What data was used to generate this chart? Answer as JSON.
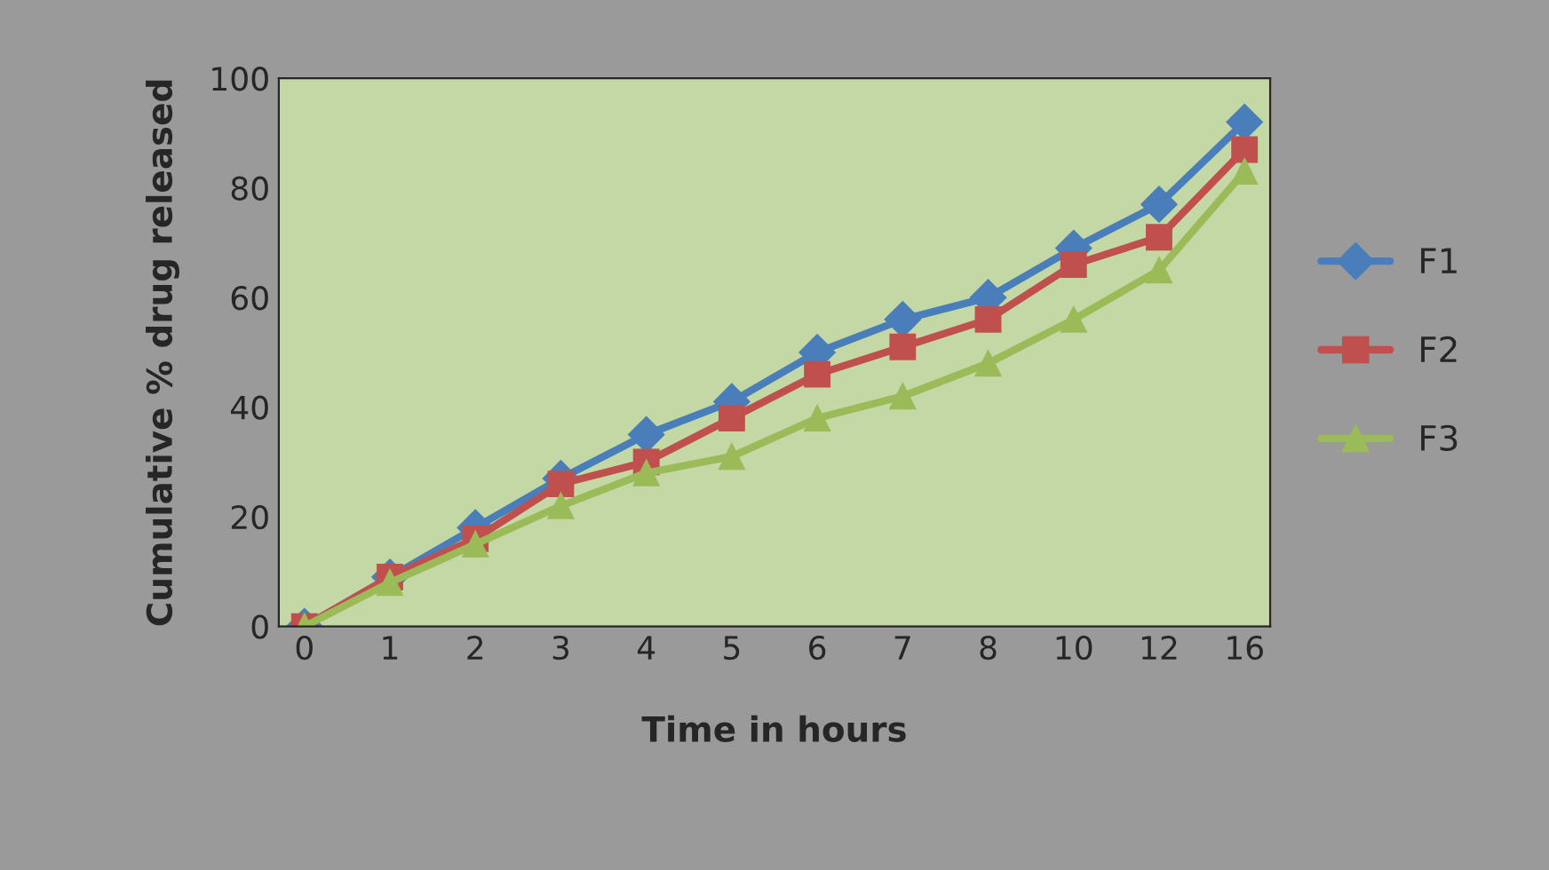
{
  "chart_data": {
    "type": "line",
    "xlabel": "Time in hours",
    "ylabel": "Cumulative % drug released",
    "categories": [
      "0",
      "1",
      "2",
      "3",
      "4",
      "5",
      "6",
      "7",
      "8",
      "10",
      "12",
      "16"
    ],
    "ylim": [
      0,
      100
    ],
    "yticks": [
      0,
      20,
      40,
      60,
      80,
      100
    ],
    "grid": false,
    "legend": "right",
    "series": [
      {
        "name": "F1",
        "color": "#4a7ebb",
        "marker": "diamond",
        "values": [
          0,
          9,
          18,
          27,
          35,
          41,
          50,
          56,
          60,
          69,
          77,
          92
        ]
      },
      {
        "name": "F2",
        "color": "#c0504d",
        "marker": "square",
        "values": [
          0,
          9,
          16,
          26,
          30,
          38,
          46,
          51,
          56,
          66,
          71,
          87
        ]
      },
      {
        "name": "F3",
        "color": "#9bbb59",
        "marker": "triangle",
        "values": [
          0,
          8,
          15,
          22,
          28,
          31,
          38,
          42,
          48,
          56,
          65,
          83
        ]
      }
    ]
  }
}
